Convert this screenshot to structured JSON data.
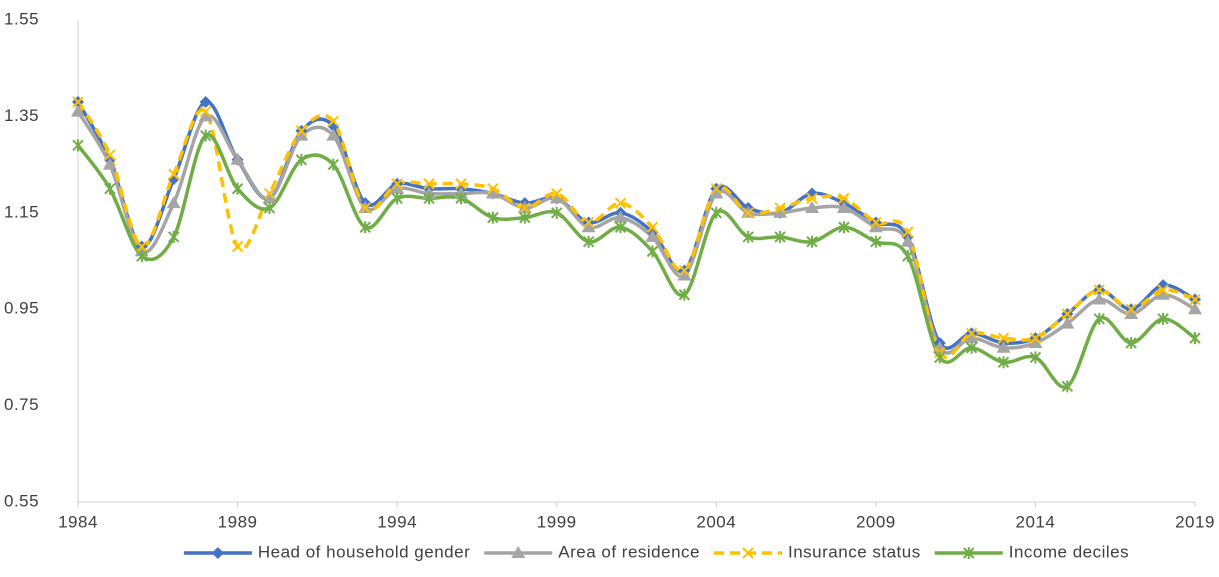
{
  "chart_data": {
    "type": "line",
    "x": [
      1984,
      1985,
      1986,
      1987,
      1988,
      1989,
      1990,
      1991,
      1992,
      1993,
      1994,
      1995,
      1996,
      1997,
      1998,
      1999,
      2000,
      2001,
      2002,
      2003,
      2004,
      2005,
      2006,
      2007,
      2008,
      2009,
      2010,
      2011,
      2012,
      2013,
      2014,
      2015,
      2016,
      2017,
      2018,
      2019
    ],
    "xlim": [
      1984,
      2019
    ],
    "xticks": [
      1984,
      1989,
      1994,
      1999,
      2004,
      2009,
      2014,
      2019
    ],
    "ylim": [
      0.55,
      1.55
    ],
    "yticks": [
      0.55,
      0.75,
      0.95,
      1.15,
      1.35,
      1.55
    ],
    "grid": false,
    "legend": "bottom",
    "smooth": true,
    "series": [
      {
        "name": "Head of household gender",
        "color": "#4472c4",
        "marker": "diamond",
        "line_style": "solid",
        "values": [
          1.38,
          1.26,
          1.08,
          1.22,
          1.38,
          1.26,
          1.18,
          1.32,
          1.33,
          1.17,
          1.21,
          1.2,
          1.2,
          1.19,
          1.17,
          1.18,
          1.13,
          1.15,
          1.11,
          1.03,
          1.2,
          1.16,
          1.15,
          1.19,
          1.17,
          1.13,
          1.1,
          0.88,
          0.9,
          0.88,
          0.89,
          0.94,
          0.99,
          0.95,
          1.0,
          0.97
        ]
      },
      {
        "name": "Area of residence",
        "color": "#a5a5a5",
        "marker": "triangle",
        "line_style": "solid",
        "values": [
          1.36,
          1.25,
          1.07,
          1.17,
          1.35,
          1.26,
          1.18,
          1.31,
          1.31,
          1.16,
          1.2,
          1.19,
          1.19,
          1.19,
          1.16,
          1.18,
          1.12,
          1.14,
          1.1,
          1.02,
          1.19,
          1.15,
          1.15,
          1.16,
          1.16,
          1.12,
          1.09,
          0.87,
          0.89,
          0.87,
          0.88,
          0.92,
          0.97,
          0.94,
          0.98,
          0.95
        ]
      },
      {
        "name": "Insurance status",
        "color": "#ffc000",
        "marker": "x",
        "line_style": "dashed",
        "values": [
          1.38,
          1.27,
          1.08,
          1.23,
          1.36,
          1.08,
          1.19,
          1.32,
          1.34,
          1.16,
          1.21,
          1.21,
          1.21,
          1.2,
          1.16,
          1.19,
          1.13,
          1.17,
          1.12,
          1.03,
          1.2,
          1.15,
          1.16,
          1.18,
          1.18,
          1.13,
          1.11,
          0.86,
          0.9,
          0.89,
          0.89,
          0.94,
          0.99,
          0.95,
          0.99,
          0.97
        ]
      },
      {
        "name": "Income deciles",
        "color": "#70ad47",
        "marker": "star",
        "line_style": "solid",
        "values": [
          1.29,
          1.2,
          1.06,
          1.1,
          1.31,
          1.2,
          1.16,
          1.26,
          1.25,
          1.12,
          1.18,
          1.18,
          1.18,
          1.14,
          1.14,
          1.15,
          1.09,
          1.12,
          1.07,
          0.98,
          1.15,
          1.1,
          1.1,
          1.09,
          1.12,
          1.09,
          1.06,
          0.85,
          0.87,
          0.84,
          0.85,
          0.79,
          0.93,
          0.88,
          0.93,
          0.89
        ]
      }
    ]
  }
}
